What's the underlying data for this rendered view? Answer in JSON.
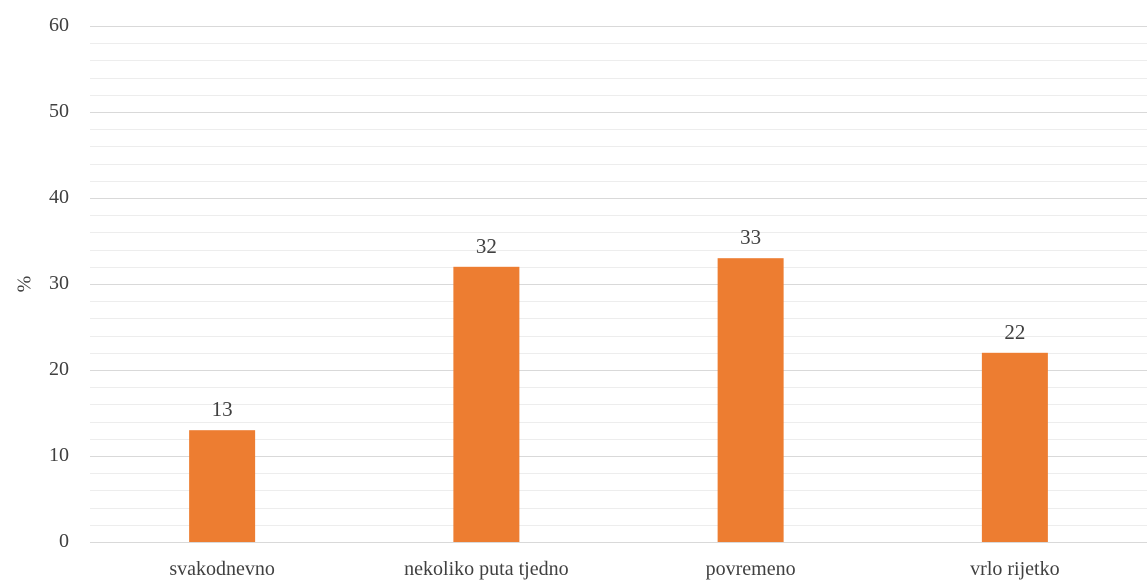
{
  "chart_data": {
    "type": "bar",
    "title": "",
    "xlabel": "",
    "ylabel": "%",
    "categories": [
      "svakodnevno",
      "nekoliko puta tjedno",
      "povremeno",
      "vrlo rijetko"
    ],
    "values": [
      13,
      32,
      33,
      22
    ],
    "ylim": [
      0,
      60
    ],
    "y_major_step": 10,
    "y_minor_step": 2,
    "grid": true,
    "legend": "none",
    "data_labels": true,
    "colors": {
      "bar": "#ED7D31",
      "major_grid": "#D9D9D9",
      "minor_grid": "#EDEDED",
      "text": "#404040"
    }
  }
}
